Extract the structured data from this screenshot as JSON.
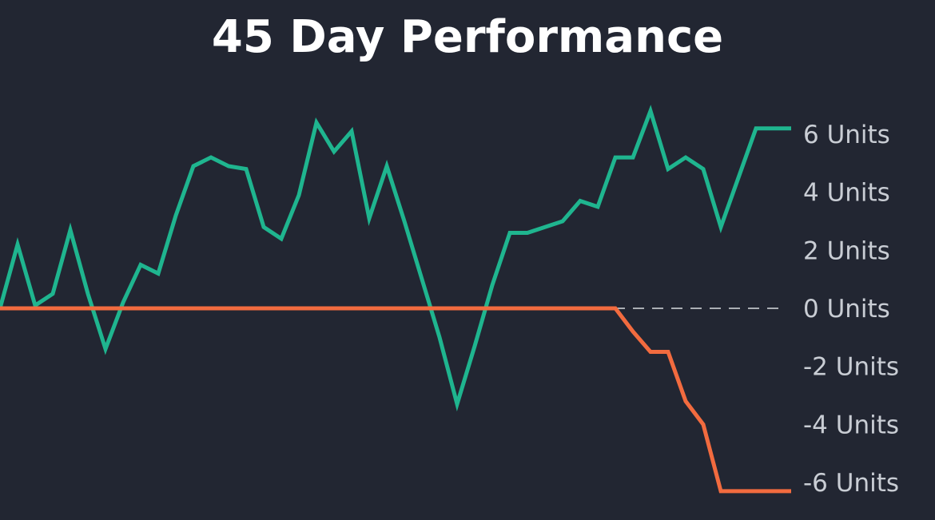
{
  "chart_data": {
    "type": "line",
    "title": "45 Day Performance",
    "xlabel": "",
    "ylabel": "",
    "ylim": [
      -6.5,
      7
    ],
    "yticks": [
      6,
      4,
      2,
      0,
      -2,
      -4,
      -6
    ],
    "ytick_labels": [
      "6 Units",
      "4 Units",
      "2 Units",
      "0 Units",
      "-2 Units",
      "-4 Units",
      "-6 Units"
    ],
    "grid": false,
    "zero_line": "dashed",
    "x": [
      1,
      2,
      3,
      4,
      5,
      6,
      7,
      8,
      9,
      10,
      11,
      12,
      13,
      14,
      15,
      16,
      17,
      18,
      19,
      20,
      21,
      22,
      23,
      24,
      25,
      26,
      27,
      28,
      29,
      30,
      31,
      32,
      33,
      34,
      35,
      36,
      37,
      38,
      39,
      40,
      41,
      42,
      43,
      44,
      45,
      46
    ],
    "series": [
      {
        "color": "#1fb58f",
        "values": [
          0.0,
          2.2,
          0.1,
          0.5,
          2.7,
          0.5,
          -1.4,
          0.2,
          1.5,
          1.2,
          3.2,
          4.9,
          5.2,
          4.9,
          4.8,
          2.8,
          2.4,
          3.9,
          6.4,
          5.4,
          6.1,
          3.1,
          4.9,
          3.0,
          1.0,
          -1.0,
          -3.3,
          -1.3,
          0.8,
          2.6,
          2.6,
          2.8,
          3.0,
          3.7,
          3.5,
          5.2,
          5.2,
          6.8,
          4.8,
          5.2,
          4.8,
          2.8,
          4.5,
          6.2,
          6.2,
          6.2
        ]
      },
      {
        "color": "#f26b3f",
        "values": [
          0,
          0,
          0,
          0,
          0,
          0,
          0,
          0,
          0,
          0,
          0,
          0,
          0,
          0,
          0,
          0,
          0,
          0,
          0,
          0,
          0,
          0,
          0,
          0,
          0,
          0,
          0,
          0,
          0,
          0,
          0,
          0,
          0,
          0,
          0,
          0,
          -0.8,
          -1.5,
          -1.5,
          -3.2,
          -4.0,
          -6.3,
          -6.3,
          -6.3,
          -6.3,
          -6.3
        ]
      }
    ]
  }
}
